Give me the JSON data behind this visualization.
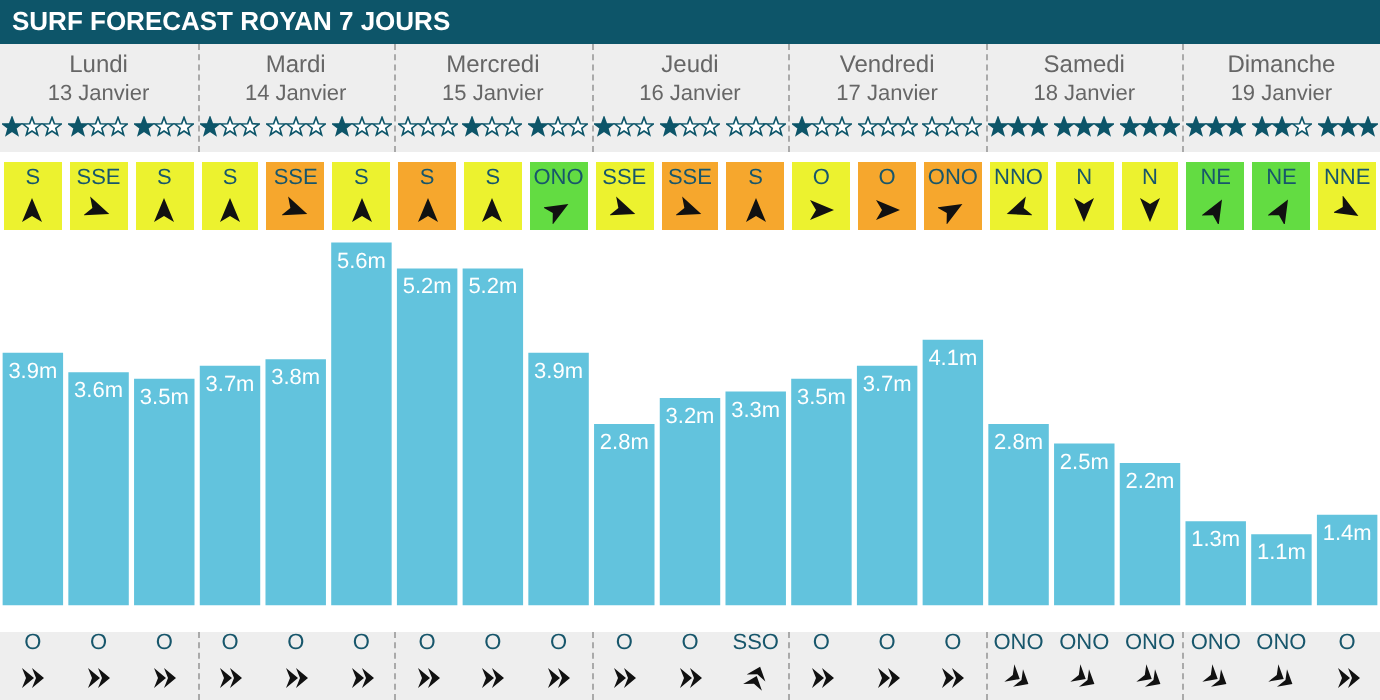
{
  "chart_data": {
    "type": "bar",
    "title": "SURF FORECAST ROYAN 7 JOURS",
    "categories": [
      "O",
      "O",
      "O",
      "O",
      "O",
      "O",
      "O",
      "O",
      "O",
      "O",
      "O",
      "SSO",
      "O",
      "O",
      "O",
      "ONO",
      "ONO",
      "ONO",
      "ONO",
      "ONO",
      "O"
    ],
    "values": [
      3.9,
      3.6,
      3.5,
      3.7,
      3.8,
      5.6,
      5.2,
      5.2,
      3.9,
      2.8,
      3.2,
      3.3,
      3.5,
      3.7,
      4.1,
      2.8,
      2.5,
      2.2,
      1.3,
      1.1,
      1.4
    ],
    "value_labels": [
      "3.9m",
      "3.6m",
      "3.5m",
      "3.7m",
      "3.8m",
      "5.6m",
      "5.2m",
      "5.2m",
      "3.9m",
      "2.8m",
      "3.2m",
      "3.3m",
      "3.5m",
      "3.7m",
      "4.1m",
      "2.8m",
      "2.5m",
      "2.2m",
      "1.3m",
      "1.1m",
      "1.4m"
    ],
    "color": "#62c3dd",
    "ylim": [
      0,
      5.7
    ],
    "tick_labels": "x",
    "grid": false,
    "legend": false,
    "annotations": [
      "Lundi",
      "13 Janvier",
      "Mardi",
      "14 Janvier",
      "Mercredi",
      "15 Janvier",
      "Jeudi",
      "16 Janvier",
      "Vendredi",
      "17 Janvier",
      "Samedi",
      "18 Janvier",
      "Dimanche",
      "19 Janvier",
      "S",
      "SSE",
      "S",
      "S",
      "SSE",
      "S",
      "S",
      "S",
      "ONO",
      "SSE",
      "SSE",
      "S",
      "O",
      "O",
      "ONO",
      "NNO",
      "N",
      "N",
      "NE",
      "NE",
      "NNE"
    ]
  }
}
